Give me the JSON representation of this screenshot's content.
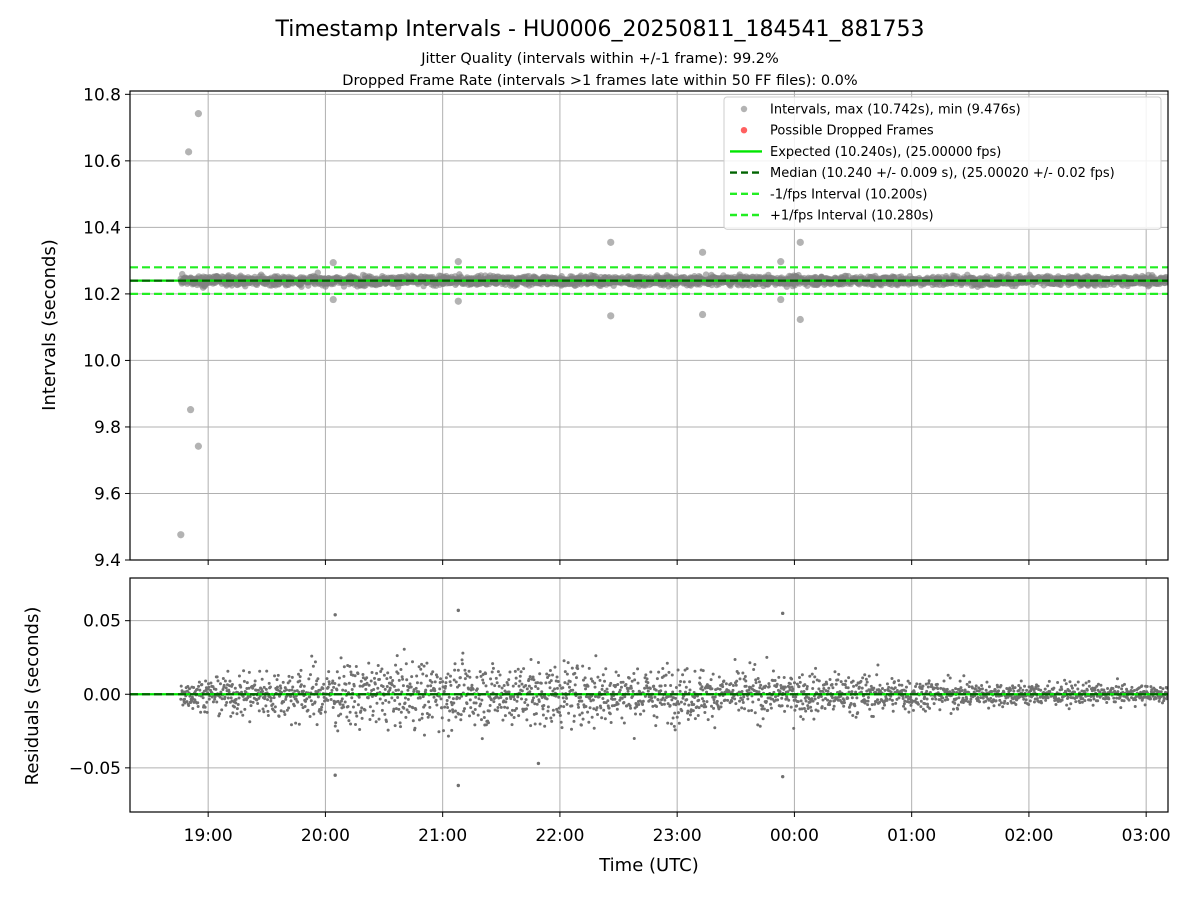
{
  "chart_data": [
    {
      "type": "scatter",
      "title": "Timestamp Intervals - HU0006_20250811_184541_881753",
      "subtitle_1": "Jitter Quality (intervals within +/-1 frame): 99.2%",
      "subtitle_2": "Dropped Frame Rate (intervals >1 frames late within 50 FF files): 0.0%",
      "ylabel": "Intervals (seconds)",
      "ylim": [
        9.4,
        10.81
      ],
      "yticks": [
        9.4,
        9.6,
        9.8,
        10.0,
        10.2,
        10.4,
        10.6,
        10.8
      ],
      "ytick_labels": [
        "9.4",
        "9.6",
        "9.8",
        "10.0",
        "10.2",
        "10.4",
        "10.6",
        "10.8"
      ],
      "grid": true,
      "legend_position": "upper right",
      "colors": {
        "points": "#808080",
        "dropped": "#ff6060",
        "expected": "#00e600",
        "median": "#006400",
        "interval": "#22ee22"
      },
      "legend": [
        {
          "label": "Intervals, max (10.742s), min (9.476s)",
          "kind": "point-gray"
        },
        {
          "label": "Possible Dropped Frames",
          "kind": "point-red"
        },
        {
          "label": "Expected (10.240s), (25.00000 fps)",
          "kind": "line-green"
        },
        {
          "label": "Median (10.240 +/- 0.009 s), (25.00020 +/- 0.02 fps)",
          "kind": "dash-darkgreen"
        },
        {
          "label": "-1/fps Interval (10.200s)",
          "kind": "dash-green"
        },
        {
          "label": "+1/fps Interval (10.280s)",
          "kind": "dash-green"
        }
      ],
      "reference_lines": {
        "expected": 10.24,
        "median": 10.24,
        "lower": 10.2,
        "upper": 10.28
      },
      "series": [
        {
          "name": "Intervals, max (10.742s), min (9.476s)",
          "notable_points": [
            {
              "x": "18:46",
              "y": 9.476
            },
            {
              "x": "18:50",
              "y": 10.627
            },
            {
              "x": "18:51",
              "y": 9.852
            },
            {
              "x": "18:55",
              "y": 10.742
            },
            {
              "x": "18:55",
              "y": 9.742
            },
            {
              "x": "20:04",
              "y": 10.294
            },
            {
              "x": "20:04",
              "y": 10.183
            },
            {
              "x": "21:08",
              "y": 10.297
            },
            {
              "x": "21:08",
              "y": 10.178
            },
            {
              "x": "22:26",
              "y": 10.355
            },
            {
              "x": "22:26",
              "y": 10.134
            },
            {
              "x": "23:13",
              "y": 10.325
            },
            {
              "x": "23:13",
              "y": 10.138
            },
            {
              "x": "23:53",
              "y": 10.297
            },
            {
              "x": "23:53",
              "y": 10.183
            },
            {
              "x": "00:03",
              "y": 10.355
            },
            {
              "x": "00:03",
              "y": 10.123
            }
          ],
          "typical_range": [
            10.21,
            10.27
          ],
          "x_range": [
            "18:46",
            "03:13"
          ]
        },
        {
          "name": "Possible Dropped Frames",
          "points": []
        }
      ]
    },
    {
      "type": "scatter",
      "ylabel": "Residuals (seconds)",
      "xlabel": "Time (UTC)",
      "ylim": [
        -0.08,
        0.079
      ],
      "yticks": [
        -0.05,
        0.0,
        0.05
      ],
      "ytick_labels": [
        "−0.05",
        "0.00",
        "0.05"
      ],
      "x_ticks": [
        "19:00",
        "20:00",
        "21:00",
        "22:00",
        "23:00",
        "00:00",
        "01:00",
        "02:00",
        "03:00"
      ],
      "grid": true,
      "reference_lines": {
        "zero": 0.0
      },
      "series": [
        {
          "name": "Residuals",
          "notable_points": [
            {
              "x": "20:05",
              "y": 0.054
            },
            {
              "x": "20:05",
              "y": -0.055
            },
            {
              "x": "21:08",
              "y": 0.057
            },
            {
              "x": "21:08",
              "y": -0.062
            },
            {
              "x": "23:54",
              "y": 0.055
            },
            {
              "x": "23:54",
              "y": -0.056
            },
            {
              "x": "21:49",
              "y": -0.047
            }
          ],
          "envelope": [
            {
              "x": "18:46",
              "amp": 0.012
            },
            {
              "x": "19:30",
              "amp": 0.024
            },
            {
              "x": "20:30",
              "amp": 0.032
            },
            {
              "x": "22:00",
              "amp": 0.03
            },
            {
              "x": "23:00",
              "amp": 0.025
            },
            {
              "x": "00:30",
              "amp": 0.02
            },
            {
              "x": "01:30",
              "amp": 0.013
            },
            {
              "x": "02:30",
              "amp": 0.01
            },
            {
              "x": "03:13",
              "amp": 0.008
            }
          ]
        }
      ]
    }
  ]
}
